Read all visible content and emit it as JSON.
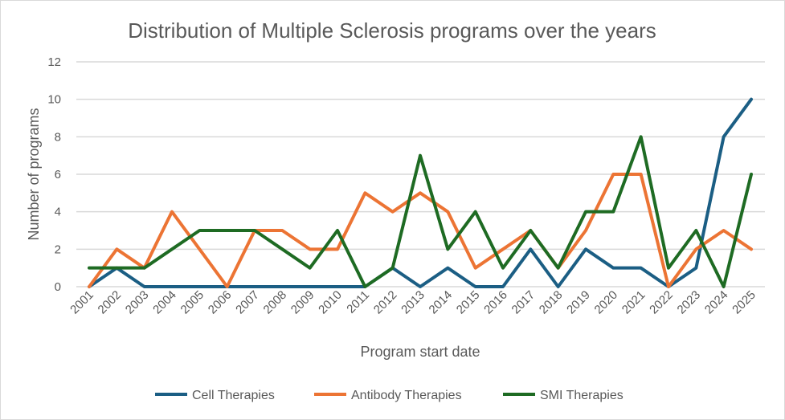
{
  "chart_data": {
    "type": "line",
    "title": "Distribution of Multiple Sclerosis programs over the years",
    "xlabel": "Program start date",
    "ylabel": "Number of programs",
    "ylim": [
      0,
      12
    ],
    "yticks": [
      0,
      2,
      4,
      6,
      8,
      10,
      12
    ],
    "grid": true,
    "legend_position": "bottom",
    "categories": [
      "2001",
      "2002",
      "2003",
      "2004",
      "2005",
      "2006",
      "2007",
      "2008",
      "2009",
      "2010",
      "2011",
      "2012",
      "2013",
      "2014",
      "2015",
      "2016",
      "2017",
      "2018",
      "2019",
      "2020",
      "2021",
      "2022",
      "2023",
      "2024",
      "2025"
    ],
    "series": [
      {
        "name": "Cell Therapies",
        "color": "#1b5e84",
        "values": [
          0,
          1,
          0,
          0,
          0,
          0,
          0,
          0,
          0,
          0,
          0,
          1,
          0,
          1,
          0,
          0,
          2,
          0,
          2,
          1,
          1,
          0,
          1,
          8,
          10
        ]
      },
      {
        "name": "Antibody Therapies",
        "color": "#ec7434",
        "values": [
          0,
          2,
          1,
          4,
          2,
          0,
          3,
          3,
          2,
          2,
          5,
          4,
          5,
          4,
          1,
          2,
          3,
          1,
          3,
          6,
          6,
          0,
          2,
          3,
          2
        ]
      },
      {
        "name": "SMI Therapies",
        "color": "#1e6b23",
        "values": [
          1,
          1,
          1,
          2,
          3,
          3,
          3,
          2,
          1,
          3,
          0,
          1,
          7,
          2,
          4,
          1,
          3,
          1,
          4,
          4,
          8,
          1,
          3,
          0,
          6
        ]
      }
    ]
  }
}
